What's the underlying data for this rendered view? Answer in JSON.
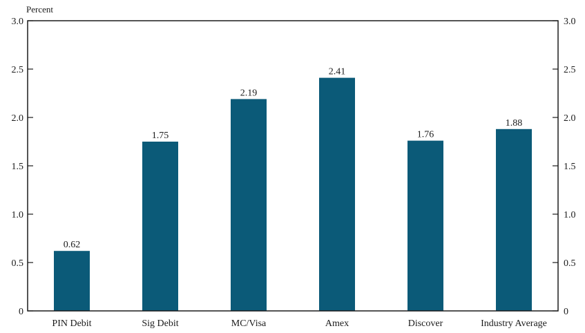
{
  "chart_data": {
    "type": "bar",
    "title": "",
    "xlabel": "",
    "ylabel": "Percent",
    "categories": [
      "PIN Debit",
      "Sig Debit",
      "MC/Visa",
      "Amex",
      "Discover",
      "Industry Average"
    ],
    "values": [
      0.62,
      1.75,
      2.19,
      2.41,
      1.76,
      1.88
    ],
    "value_labels": [
      "0.62",
      "1.75",
      "2.19",
      "2.41",
      "1.76",
      "1.88"
    ],
    "ylim": [
      0,
      3.0
    ],
    "y_ticks": [
      0,
      0.5,
      1.0,
      1.5,
      2.0,
      2.5,
      3.0
    ],
    "y_tick_labels": [
      "0",
      "0.5",
      "1.0",
      "1.5",
      "2.0",
      "2.5",
      "3.0"
    ],
    "y_axis_sides": "left and right",
    "grid": false,
    "legend": "none",
    "bar_color": "#0b5a78",
    "axis_color": "#1a1a1a"
  }
}
